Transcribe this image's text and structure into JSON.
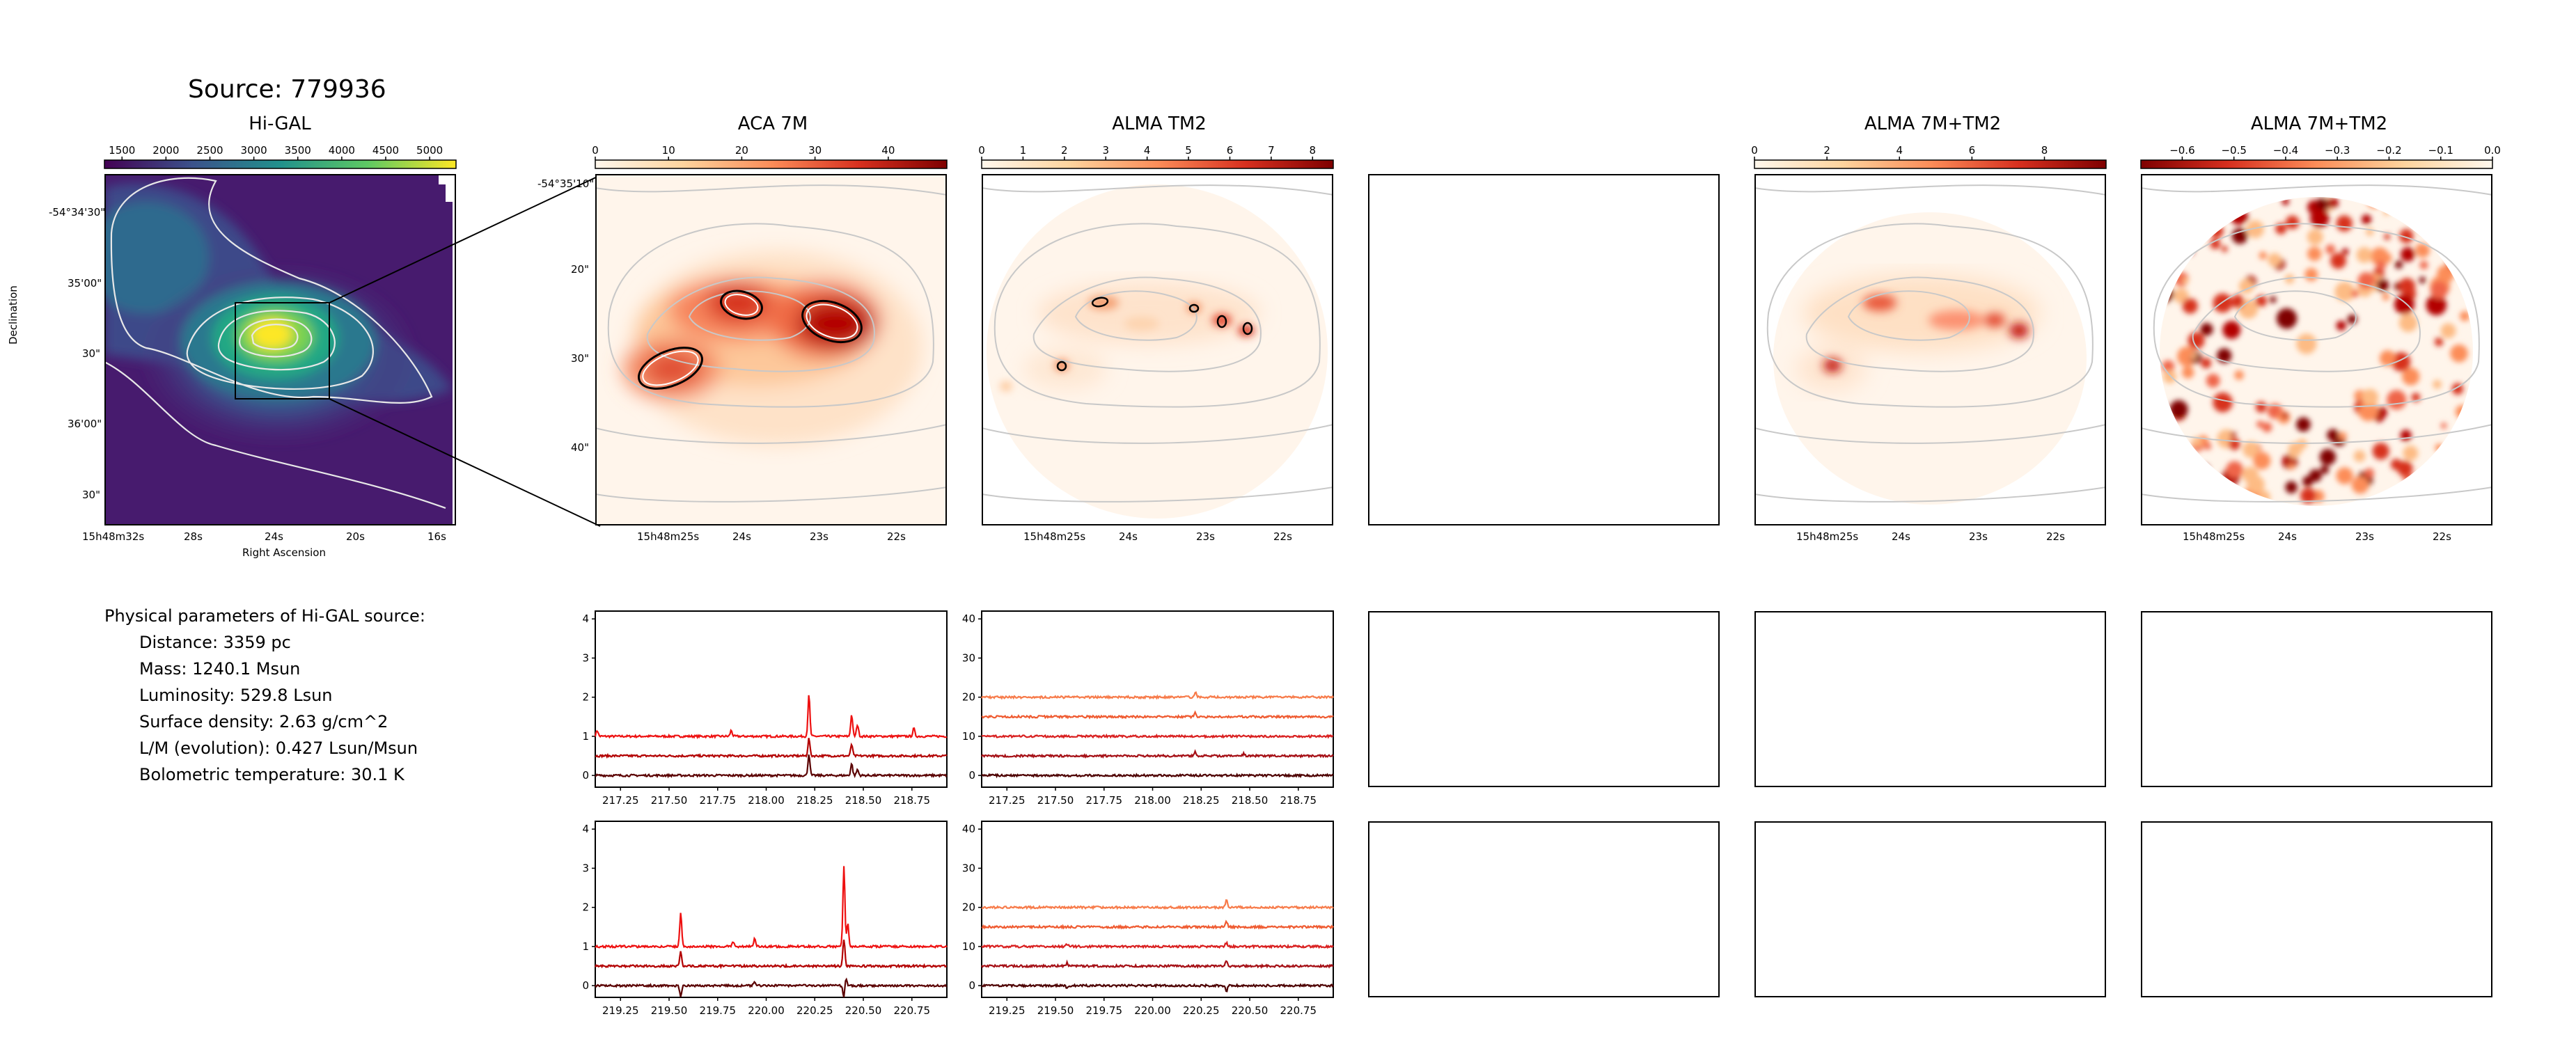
{
  "figure": {
    "title": "Source: 779936",
    "panel_titles": [
      "Hi-GAL",
      "ACA 7M",
      "ALMA TM2",
      "ALMA 7M+TM2",
      "ALMA 7M+TM2"
    ],
    "hi_gal": {
      "colorbar": {
        "ticks": [
          "1500",
          "2000",
          "2500",
          "3000",
          "3500",
          "4000",
          "4500",
          "5000"
        ],
        "range": [
          1300,
          5300
        ],
        "cmap": "viridis"
      },
      "yticks": [
        "-54°34'30\"",
        "35'00\"",
        "30\"",
        "36'00\"",
        "30\""
      ],
      "xticks": [
        "15h48m32s",
        "28s",
        "24s",
        "20s",
        "16s"
      ],
      "xlabel": "Right Ascension",
      "ylabel": "Declination"
    },
    "aca7m": {
      "colorbar": {
        "ticks": [
          "0",
          "10",
          "20",
          "30",
          "40"
        ],
        "range": [
          0,
          48
        ],
        "cmap": "OrRd"
      },
      "yticks": [
        "-54°35'10\"",
        "20\"",
        "30\"",
        "40\""
      ],
      "xticks": [
        "15h48m25s",
        "24s",
        "23s",
        "22s"
      ]
    },
    "tm2": {
      "colorbar": {
        "ticks": [
          "0",
          "1",
          "2",
          "3",
          "4",
          "5",
          "6",
          "7",
          "8"
        ],
        "range": [
          0,
          8.5
        ],
        "cmap": "OrRd"
      },
      "xticks": [
        "15h48m25s",
        "24s",
        "23s",
        "22s"
      ]
    },
    "combo": {
      "colorbar": {
        "ticks": [
          "0",
          "2",
          "4",
          "6",
          "8"
        ],
        "range": [
          0,
          9.7
        ],
        "cmap": "OrRd"
      },
      "xticks": [
        "15h48m25s",
        "24s",
        "23s",
        "22s"
      ]
    },
    "combo_neg": {
      "colorbar": {
        "ticks": [
          "−0.6",
          "−0.5",
          "−0.4",
          "−0.3",
          "−0.2",
          "−0.1",
          "0.0"
        ],
        "range": [
          -0.68,
          0.0
        ],
        "cmap": "OrRd_r"
      },
      "xticks": [
        "15h48m25s",
        "24s",
        "23s",
        "22s"
      ]
    }
  },
  "physical_parameters": {
    "heading": "Physical parameters of Hi-GAL source:",
    "distance": "Distance: 3359 pc",
    "mass": "Mass: 1240.1 Msun",
    "luminosity": "Luminosity: 529.8 Lsun",
    "surface_density": "Surface density: 2.63 g/cm^2",
    "l_over_m": "L/M (evolution): 0.427 Lsun/Msun",
    "bolometric_temperature": "Bolometric temperature: 30.1 K"
  },
  "chart_data": [
    {
      "type": "line",
      "panel": "aca7m-spectrum-row1",
      "xlim": [
        217.12,
        218.93
      ],
      "ylim": [
        -0.3,
        4.2
      ],
      "xticks": [
        "217.25",
        "217.50",
        "217.75",
        "218.00",
        "218.25",
        "218.50",
        "218.75"
      ],
      "yticks": [
        "0",
        "1",
        "2",
        "3",
        "4"
      ],
      "series": [
        {
          "color": "#ee1111",
          "baseline": 1.0,
          "peaks": [
            [
              217.13,
              0.15
            ],
            [
              217.82,
              0.15
            ],
            [
              218.22,
              1.05
            ],
            [
              218.44,
              0.55
            ],
            [
              218.47,
              0.3
            ],
            [
              218.76,
              0.2
            ]
          ]
        },
        {
          "color": "#b30000",
          "baseline": 0.5,
          "peaks": [
            [
              218.22,
              0.45
            ],
            [
              218.44,
              0.3
            ]
          ]
        },
        {
          "color": "#5a0000",
          "baseline": 0.0,
          "peaks": [
            [
              218.22,
              0.55
            ],
            [
              218.44,
              0.3
            ],
            [
              218.47,
              0.15
            ]
          ]
        }
      ]
    },
    {
      "type": "line",
      "panel": "tm2-spectrum-row1",
      "xlim": [
        217.12,
        218.93
      ],
      "ylim": [
        -3,
        42
      ],
      "xticks": [
        "217.25",
        "217.50",
        "217.75",
        "218.00",
        "218.25",
        "218.50",
        "218.75"
      ],
      "yticks": [
        "0",
        "10",
        "20",
        "30",
        "40"
      ],
      "series": [
        {
          "color": "#f77b4a",
          "baseline": 20,
          "peaks": [
            [
              218.22,
              1.2
            ]
          ]
        },
        {
          "color": "#ef5a30",
          "baseline": 15,
          "peaks": [
            [
              218.22,
              1.0
            ]
          ]
        },
        {
          "color": "#d92020",
          "baseline": 10,
          "peaks": []
        },
        {
          "color": "#a50f15",
          "baseline": 5,
          "peaks": [
            [
              218.22,
              1.0
            ],
            [
              218.47,
              0.6
            ]
          ]
        },
        {
          "color": "#4d0000",
          "baseline": 0,
          "peaks": []
        }
      ]
    },
    {
      "type": "line",
      "panel": "aca7m-spectrum-row2",
      "xlim": [
        219.12,
        220.93
      ],
      "ylim": [
        -0.3,
        4.2
      ],
      "xticks": [
        "219.25",
        "219.50",
        "219.75",
        "220.00",
        "220.25",
        "220.50",
        "220.75"
      ],
      "yticks": [
        "0",
        "1",
        "2",
        "3",
        "4"
      ],
      "series": [
        {
          "color": "#ee1111",
          "baseline": 1.0,
          "peaks": [
            [
              219.56,
              0.85
            ],
            [
              219.83,
              0.12
            ],
            [
              219.94,
              0.2
            ],
            [
              220.4,
              2.05
            ],
            [
              220.42,
              0.6
            ]
          ]
        },
        {
          "color": "#b30000",
          "baseline": 0.5,
          "peaks": [
            [
              219.56,
              0.4
            ],
            [
              220.4,
              0.7
            ]
          ]
        },
        {
          "color": "#5a0000",
          "baseline": 0.0,
          "peaks": [
            [
              219.56,
              -0.3
            ],
            [
              219.94,
              0.1
            ],
            [
              220.4,
              -0.3
            ],
            [
              220.41,
              0.2
            ]
          ]
        }
      ]
    },
    {
      "type": "line",
      "panel": "tm2-spectrum-row2",
      "xlim": [
        219.12,
        220.93
      ],
      "ylim": [
        -3,
        42
      ],
      "xticks": [
        "219.25",
        "219.50",
        "219.75",
        "220.00",
        "220.25",
        "220.50",
        "220.75"
      ],
      "yticks": [
        "0",
        "10",
        "20",
        "30",
        "40"
      ],
      "series": [
        {
          "color": "#f77b4a",
          "baseline": 20,
          "peaks": [
            [
              220.38,
              2.0
            ]
          ]
        },
        {
          "color": "#ef5a30",
          "baseline": 15,
          "peaks": [
            [
              220.38,
              1.5
            ]
          ]
        },
        {
          "color": "#d92020",
          "baseline": 10,
          "peaks": [
            [
              219.56,
              0.6
            ],
            [
              220.38,
              1.0
            ]
          ]
        },
        {
          "color": "#a50f15",
          "baseline": 5,
          "peaks": [
            [
              219.56,
              0.8
            ],
            [
              220.38,
              1.5
            ]
          ]
        },
        {
          "color": "#4d0000",
          "baseline": 0,
          "peaks": [
            [
              219.56,
              -0.8
            ],
            [
              220.38,
              -1.5
            ]
          ]
        }
      ]
    }
  ]
}
